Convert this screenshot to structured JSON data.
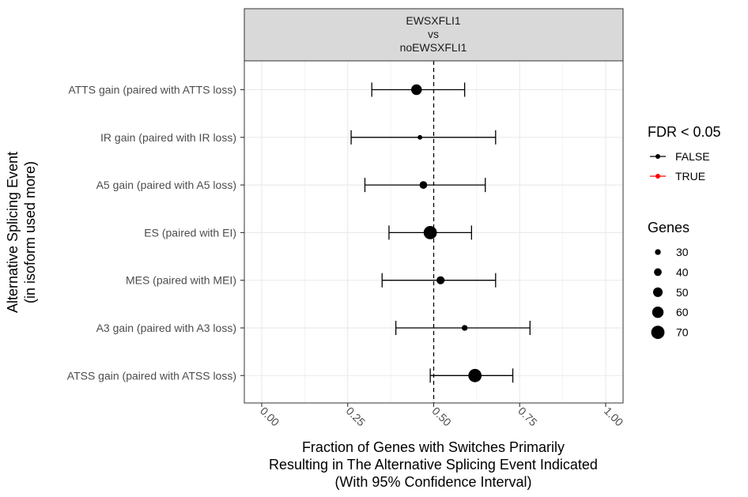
{
  "chart_data": {
    "type": "scatter",
    "facet": [
      "EWSXFLI1",
      "vs",
      "noEWSXFLI1"
    ],
    "xlabel": [
      "Fraction of Genes with Switches Primarily",
      "Resulting in The Alternative Splicing Event Indicated",
      "(With 95% Confidence Interval)"
    ],
    "ylabel": [
      "Alternative Splicing Event",
      "(in isoform used more)"
    ],
    "xlim": [
      0,
      1
    ],
    "xticks": [
      "0.00",
      "0.25",
      "0.50",
      "0.75",
      "1.00"
    ],
    "xtick_values": [
      0,
      0.25,
      0.5,
      0.75,
      1.0
    ],
    "reference_line": 0.5,
    "categories": [
      "ATTS gain (paired with ATTS loss)",
      "IR gain (paired with IR loss)",
      "A5 gain (paired with A5 loss)",
      "ES (paired with EI)",
      "MES (paired with MEI)",
      "A3 gain (paired with A3 loss)",
      "ATSS gain (paired with ATSS loss)"
    ],
    "points": [
      {
        "x": 0.45,
        "ci": [
          0.32,
          0.59
        ],
        "genes": 56,
        "fdr_significant": false
      },
      {
        "x": 0.46,
        "ci": [
          0.26,
          0.68
        ],
        "genes": 24,
        "fdr_significant": false
      },
      {
        "x": 0.47,
        "ci": [
          0.3,
          0.65
        ],
        "genes": 40,
        "fdr_significant": false
      },
      {
        "x": 0.49,
        "ci": [
          0.37,
          0.61
        ],
        "genes": 70,
        "fdr_significant": false
      },
      {
        "x": 0.52,
        "ci": [
          0.35,
          0.68
        ],
        "genes": 42,
        "fdr_significant": false
      },
      {
        "x": 0.59,
        "ci": [
          0.39,
          0.78
        ],
        "genes": 30,
        "fdr_significant": false
      },
      {
        "x": 0.62,
        "ci": [
          0.49,
          0.73
        ],
        "genes": 70,
        "fdr_significant": false
      }
    ],
    "legend_fdr": {
      "title": "FDR < 0.05",
      "entries": [
        {
          "label": "FALSE",
          "color": "#000000"
        },
        {
          "label": "TRUE",
          "color": "#ff0000"
        }
      ]
    },
    "legend_genes": {
      "title": "Genes",
      "entries": [
        {
          "label": "30",
          "value": 30
        },
        {
          "label": "40",
          "value": 40
        },
        {
          "label": "50",
          "value": 50
        },
        {
          "label": "60",
          "value": 60
        },
        {
          "label": "70",
          "value": 70
        }
      ]
    },
    "colors": {
      "grid": "#ebebeb",
      "panel_border": "#333333",
      "strip_fill": "#d9d9d9",
      "point": "#000000"
    }
  }
}
